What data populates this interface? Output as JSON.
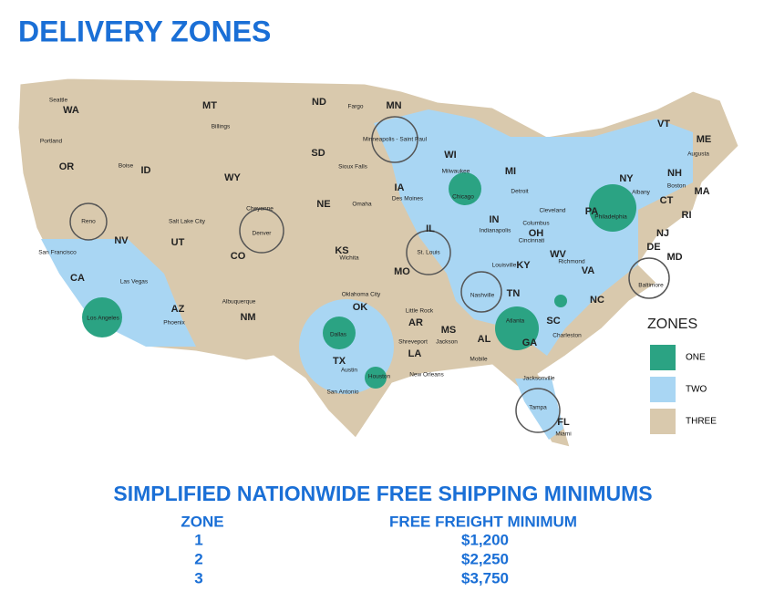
{
  "header": {
    "title": "DELIVERY ZONES"
  },
  "map": {
    "states": [
      "WA",
      "MT",
      "ND",
      "MN",
      "OR",
      "ID",
      "WY",
      "SD",
      "WI",
      "MI",
      "VT",
      "ME",
      "NH",
      "MA",
      "NY",
      "CT",
      "RI",
      "IA",
      "NE",
      "IL",
      "IN",
      "OH",
      "PA",
      "NJ",
      "NV",
      "UT",
      "CO",
      "KS",
      "MO",
      "KY",
      "WV",
      "DE",
      "MD",
      "VA",
      "CA",
      "AZ",
      "NM",
      "OK",
      "AR",
      "TN",
      "NC",
      "MS",
      "AL",
      "GA",
      "SC",
      "TX",
      "LA",
      "FL"
    ],
    "cities": [
      "Seattle",
      "Billings",
      "Fargo",
      "Portland",
      "Boise",
      "Minneapolis - Saint Paul",
      "Sioux Falls",
      "Milwaukee",
      "Augusta",
      "Detroit",
      "Albany",
      "Boston",
      "Cheyenne",
      "Omaha",
      "Des Moines",
      "Chicago",
      "Cleveland",
      "Reno",
      "Salt Lake City",
      "Denver",
      "Indianapolis",
      "Columbus",
      "Cincinnati",
      "Philadelphia",
      "San Francisco",
      "St. Louis",
      "Wichita",
      "Louisville",
      "Richmond",
      "Las Vegas",
      "Oklahoma City",
      "Nashville",
      "Los Angeles",
      "Little Rock",
      "Albuquerque",
      "Phoenix",
      "Dallas",
      "Shreveport",
      "Jackson",
      "Atlanta",
      "Charleston",
      "Baltimore",
      "Austin",
      "Houston",
      "Mobile",
      "San Antonio",
      "New Orleans",
      "Jacksonville",
      "Tampa",
      "Miami"
    ]
  },
  "legend": {
    "title": "ZONES",
    "items": [
      "ONE",
      "TWO",
      "THREE"
    ]
  },
  "table": {
    "title": "SIMPLIFIED NATIONWIDE FREE SHIPPING MINIMUMS",
    "columns": [
      "ZONE",
      "FREE FREIGHT MINIMUM"
    ],
    "rows": [
      [
        "1",
        "$1,200"
      ],
      [
        "2",
        "$2,250"
      ],
      [
        "3",
        "$3,750"
      ]
    ]
  }
}
